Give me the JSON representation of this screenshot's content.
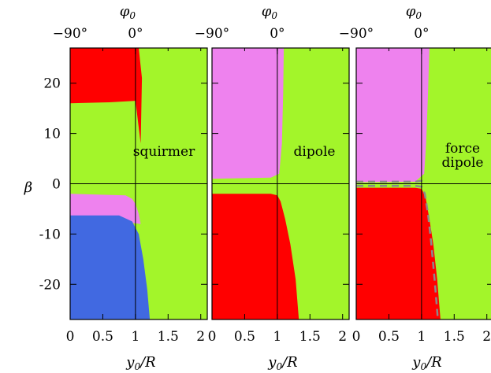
{
  "colors": {
    "green": "#a3f52a",
    "red": "#ff0000",
    "violet": "#ee82ee",
    "blue": "#4169e1",
    "dashed": "#8a8a8a"
  },
  "y_axis_label": "β",
  "x_axis_label": "y0/R",
  "top_axis_label": "φ0",
  "panels": [
    {
      "label_lines": [
        "squirmer"
      ]
    },
    {
      "label_lines": [
        "dipole"
      ]
    },
    {
      "label_lines": [
        "force",
        "dipole"
      ]
    }
  ],
  "chart_data": [
    {
      "type": "heatmap",
      "title": "",
      "annotation": "squirmer",
      "xlabel": "y0/R",
      "ylabel": "β",
      "top_xlabel": "φ0",
      "xlim": [
        0,
        2.1
      ],
      "ylim": [
        -27,
        27
      ],
      "xticks": [
        0,
        0.5,
        1,
        1.5,
        2
      ],
      "xtick_labels": [
        "0",
        "0.5",
        "1",
        "1.5",
        "2"
      ],
      "yticks": [
        -20,
        -10,
        0,
        10,
        20
      ],
      "ytick_labels": [
        "-20",
        "-10",
        "0",
        "10",
        "20"
      ],
      "top_ticks": [
        0,
        1
      ],
      "top_tick_labels": [
        "−90°",
        "0°"
      ],
      "grid": true,
      "regions": [
        {
          "color": "red",
          "polygon": [
            [
              0,
              27
            ],
            [
              1.0,
              27
            ],
            [
              1.0,
              16.5
            ],
            [
              0.6,
              16.2
            ],
            [
              0,
              16
            ]
          ]
        },
        {
          "color": "red",
          "polygon": [
            [
              1.0,
              27
            ],
            [
              1.05,
              27
            ],
            [
              1.1,
              21
            ],
            [
              1.08,
              8
            ],
            [
              1.0,
              16.5
            ]
          ]
        },
        {
          "color": "violet",
          "polygon": [
            [
              0,
              -2
            ],
            [
              0.85,
              -2.3
            ],
            [
              0.95,
              -3
            ],
            [
              1.0,
              -4
            ],
            [
              1.05,
              -6
            ],
            [
              1.08,
              -8
            ],
            [
              0,
              -6.3
            ]
          ]
        },
        {
          "color": "blue",
          "polygon": [
            [
              0,
              -6.3
            ],
            [
              0.75,
              -6.3
            ],
            [
              0.95,
              -7.5
            ],
            [
              1.05,
              -10
            ],
            [
              1.12,
              -15
            ],
            [
              1.18,
              -21
            ],
            [
              1.22,
              -27
            ],
            [
              0,
              -27
            ]
          ]
        }
      ]
    },
    {
      "type": "heatmap",
      "title": "",
      "annotation": "dipole",
      "xlabel": "y0/R",
      "ylabel": "",
      "top_xlabel": "φ0",
      "xlim": [
        0,
        2.1
      ],
      "ylim": [
        -27,
        27
      ],
      "xticks": [
        0,
        0.5,
        1,
        1.5,
        2
      ],
      "xtick_labels": [
        "0",
        "0.5",
        "1",
        "1.5",
        "2"
      ],
      "yticks": [
        -20,
        -10,
        0,
        10,
        20
      ],
      "top_ticks": [
        0,
        1
      ],
      "top_tick_labels": [
        "−90°",
        "0°"
      ],
      "grid": true,
      "regions": [
        {
          "color": "violet",
          "polygon": [
            [
              0,
              27
            ],
            [
              1.1,
              27
            ],
            [
              1.09,
              18
            ],
            [
              1.07,
              8
            ],
            [
              1.03,
              2
            ],
            [
              0.9,
              1.2
            ],
            [
              0,
              1
            ]
          ]
        },
        {
          "color": "red",
          "polygon": [
            [
              0,
              -2
            ],
            [
              0.9,
              -2
            ],
            [
              1.0,
              -2.3
            ],
            [
              1.05,
              -3.5
            ],
            [
              1.12,
              -7
            ],
            [
              1.2,
              -12
            ],
            [
              1.28,
              -19
            ],
            [
              1.33,
              -27
            ],
            [
              0,
              -27
            ]
          ]
        }
      ]
    },
    {
      "type": "heatmap",
      "title": "",
      "annotation": "force dipole",
      "xlabel": "y0/R",
      "ylabel": "",
      "top_xlabel": "φ0",
      "xlim": [
        0,
        2.1
      ],
      "ylim": [
        -27,
        27
      ],
      "xticks": [
        0,
        0.5,
        1,
        1.5,
        2
      ],
      "xtick_labels": [
        "0",
        "0.5",
        "1",
        "1.5",
        "2"
      ],
      "yticks": [
        -20,
        -10,
        0,
        10,
        20
      ],
      "top_ticks": [
        0,
        1
      ],
      "top_tick_labels": [
        "−90°",
        "0°"
      ],
      "grid": true,
      "regions": [
        {
          "color": "violet",
          "polygon": [
            [
              0,
              27
            ],
            [
              1.12,
              27
            ],
            [
              1.1,
              18
            ],
            [
              1.07,
              8
            ],
            [
              1.04,
              2
            ],
            [
              0.9,
              0.4
            ],
            [
              0,
              0.3
            ]
          ]
        },
        {
          "color": "red",
          "polygon": [
            [
              0,
              -0.8
            ],
            [
              0.9,
              -0.8
            ],
            [
              1.0,
              -1.0
            ],
            [
              1.06,
              -2.5
            ],
            [
              1.12,
              -7
            ],
            [
              1.18,
              -12
            ],
            [
              1.24,
              -19
            ],
            [
              1.29,
              -27
            ],
            [
              0,
              -27
            ]
          ]
        }
      ],
      "dashed_curves": [
        [
          [
            0,
            -0.4
          ],
          [
            0.9,
            -0.4
          ],
          [
            1.0,
            -0.6
          ],
          [
            1.05,
            -2
          ],
          [
            1.1,
            -6
          ],
          [
            1.15,
            -12
          ],
          [
            1.2,
            -19
          ],
          [
            1.25,
            -27
          ]
        ],
        [
          [
            0,
            0.4
          ],
          [
            0.9,
            0.4
          ],
          [
            1.0,
            0.6
          ],
          [
            1.02,
            1.0
          ]
        ]
      ]
    }
  ]
}
